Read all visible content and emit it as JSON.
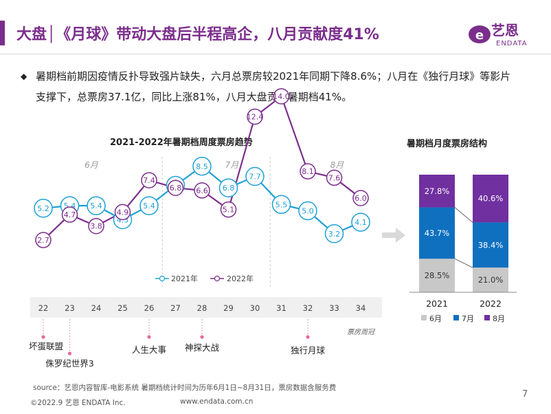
{
  "header": {
    "title": "大盘│《月球》带动大盘后半程高企，八月贡献度41%",
    "logo_cn": "艺恩",
    "logo_en": "ENDATA",
    "summary": "暑期档前期因疫情反扑导致强片缺失，六月总票房较2021年同期下降8.6%；八月在《独行月球》等影片支撑下，总票房37.1亿，同比上涨81%，八月大盘贡献暑期档41%。"
  },
  "colors": {
    "brand": "#7b2e8c",
    "c2021": "#1ea0d6",
    "c2022": "#7b2e8c",
    "jun": "#c8c8c8",
    "jul": "#0f70c0",
    "aug": "#7030a0"
  },
  "chart_data": [
    {
      "type": "line",
      "title": "2021-2022年暑期档周度票房趋势",
      "x": [
        22,
        23,
        24,
        25,
        26,
        27,
        28,
        29,
        30,
        31,
        32,
        33,
        34
      ],
      "xlabel": "票房周冠",
      "month_labels": [
        "6月",
        "7月",
        "8月"
      ],
      "series": [
        {
          "name": "2021年",
          "values": [
            5.2,
            5.4,
            5.4,
            4.3,
            5.4,
            7.0,
            8.5,
            6.8,
            7.7,
            5.5,
            5.0,
            3.2,
            4.1
          ]
        },
        {
          "name": "2022年",
          "values": [
            2.7,
            4.7,
            3.8,
            4.9,
            7.4,
            6.8,
            6.6,
            5.1,
            12.4,
            14.0,
            8.1,
            7.6,
            6.0
          ]
        }
      ],
      "weekly_champions": [
        {
          "week": 22,
          "film": "坏蛋联盟"
        },
        {
          "week": 23,
          "film": "侏罗纪世界3"
        },
        {
          "week": 26,
          "film": "人生大事"
        },
        {
          "week": 28,
          "film": "神探大战"
        },
        {
          "week": 32,
          "film": "独行月球"
        }
      ],
      "legend": "bottom-center"
    },
    {
      "type": "bar",
      "title": "暑期档月度票房结构",
      "stacked": true,
      "categories": [
        "2021",
        "2022"
      ],
      "series": [
        {
          "name": "6月",
          "values": [
            28.5,
            21.0
          ],
          "labels": [
            "28.5%",
            "21.0%"
          ]
        },
        {
          "name": "7月",
          "values": [
            43.7,
            38.4
          ],
          "labels": [
            "43.7%",
            "38.4%"
          ]
        },
        {
          "name": "8月",
          "values": [
            27.8,
            40.6
          ],
          "labels": [
            "27.8%",
            "40.6%"
          ]
        }
      ],
      "legend": "bottom"
    }
  ],
  "footer": {
    "source": "source：艺恩内容智库-电影系统     暑期档统计时间为历年6月1日~8月31日，票房数据含服务费",
    "copyright": "©2022.9 艺恩 ENDATA Inc.",
    "website": "www.endata.com.cn",
    "page": "7"
  }
}
